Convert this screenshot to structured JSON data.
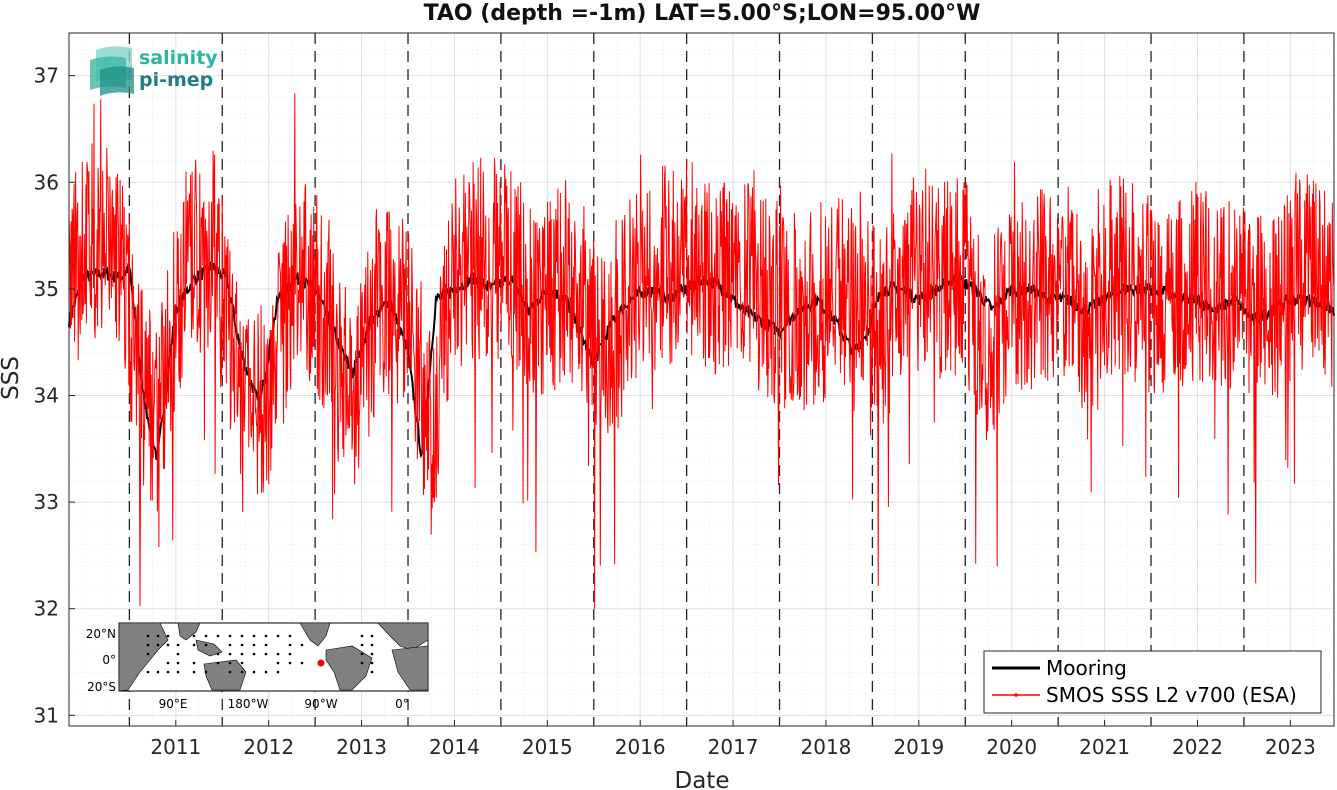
{
  "chart_data": {
    "type": "line",
    "title": "TAO (depth =-1m) LAT=5.00°S;LON=95.00°W",
    "xlabel": "Date",
    "ylabel": "SSS",
    "xlim": [
      2010.35,
      2023.97
    ],
    "ylim": [
      30.9,
      37.4
    ],
    "x_ticks": [
      "2011",
      "2012",
      "2013",
      "2014",
      "2015",
      "2016",
      "2017",
      "2018",
      "2019",
      "2020",
      "2021",
      "2022",
      "2023"
    ],
    "y_ticks": [
      "31",
      "32",
      "33",
      "34",
      "35",
      "36",
      "37"
    ],
    "year_boundaries": [
      2011,
      2012,
      2013,
      2014,
      2015,
      2016,
      2017,
      2018,
      2019,
      2020,
      2021,
      2022,
      2023
    ],
    "grid": true,
    "legend_position": "bottom-right",
    "series": [
      {
        "name": "Mooring",
        "color": "#000000",
        "x": [
          2010.35,
          2010.5,
          2010.7,
          2010.9,
          2011.0,
          2011.15,
          2011.3,
          2011.5,
          2011.7,
          2011.9,
          2012.05,
          2012.2,
          2012.4,
          2012.6,
          2012.8,
          2013.0,
          2013.2,
          2013.4,
          2013.6,
          2013.8,
          2014.0,
          2014.15,
          2014.3,
          2014.5,
          2014.7,
          2014.9,
          2015.1,
          2015.3,
          2015.5,
          2015.7,
          2015.9,
          2016.0,
          2016.2,
          2016.4,
          2016.6,
          2016.8,
          2017.0,
          2017.2,
          2017.4,
          2017.6,
          2017.8,
          2018.0,
          2018.2,
          2018.4,
          2018.6,
          2018.8,
          2018.95,
          2019.1,
          2019.3,
          2019.5,
          2019.7,
          2019.9,
          2020.1,
          2020.3,
          2020.5,
          2020.7,
          2020.9,
          2021.1,
          2021.3,
          2021.5,
          2021.7,
          2021.9,
          2022.1,
          2022.3,
          2022.5,
          2022.7,
          2022.9,
          2023.1,
          2023.3,
          2023.5,
          2023.7,
          2023.97
        ],
        "y": [
          34.7,
          35.1,
          35.15,
          35.1,
          35.2,
          34.0,
          33.4,
          34.8,
          35.1,
          35.2,
          35.1,
          34.4,
          33.9,
          34.9,
          35.1,
          35.0,
          34.6,
          34.2,
          34.7,
          34.9,
          34.4,
          33.4,
          34.9,
          35.0,
          35.1,
          35.0,
          35.1,
          34.8,
          35.0,
          34.9,
          34.5,
          34.3,
          34.7,
          34.9,
          35.0,
          34.9,
          35.0,
          35.1,
          35.0,
          34.8,
          34.7,
          34.6,
          34.8,
          34.9,
          34.7,
          34.4,
          34.6,
          35.0,
          35.0,
          34.9,
          35.0,
          35.1,
          35.0,
          34.8,
          35.0,
          35.0,
          34.9,
          34.9,
          34.8,
          34.9,
          35.0,
          35.0,
          35.0,
          34.9,
          34.9,
          34.8,
          34.9,
          34.7,
          34.8,
          34.9,
          34.9,
          34.8
        ]
      },
      {
        "name": "SMOS SSS L2 v700 (ESA)",
        "color": "#ff0000",
        "x": [
          2010.35,
          2010.5,
          2010.7,
          2010.9,
          2011.1,
          2011.3,
          2011.6,
          2011.9,
          2012.2,
          2012.45,
          2012.8,
          2013.0,
          2013.2,
          2013.45,
          2013.7,
          2014.0,
          2014.25,
          2014.5,
          2014.8,
          2015.1,
          2015.4,
          2015.7,
          2016.0,
          2016.15,
          2016.4,
          2016.7,
          2017.0,
          2017.3,
          2017.6,
          2017.9,
          2018.2,
          2018.5,
          2018.8,
          2019.1,
          2019.4,
          2019.7,
          2020.0,
          2020.2,
          2020.5,
          2020.8,
          2021.1,
          2021.3,
          2021.6,
          2021.9,
          2022.15,
          2022.4,
          2022.7,
          2023.0,
          2023.3,
          2023.6,
          2023.97
        ],
        "y": [
          34.9,
          35.4,
          35.5,
          35.3,
          34.2,
          33.8,
          35.2,
          35.4,
          34.0,
          33.9,
          35.2,
          35.0,
          34.4,
          34.0,
          35.0,
          34.8,
          33.6,
          35.2,
          35.3,
          35.2,
          34.8,
          35.1,
          34.7,
          34.3,
          35.0,
          35.2,
          35.3,
          35.1,
          35.1,
          34.9,
          34.7,
          34.9,
          35.1,
          34.6,
          35.2,
          35.1,
          35.1,
          34.4,
          35.0,
          35.0,
          35.1,
          34.5,
          35.2,
          35.0,
          34.8,
          35.1,
          35.0,
          34.9,
          34.8,
          35.2,
          34.9
        ]
      }
    ],
    "inset_map": {
      "lat_labels": [
        "20°N",
        "0°",
        "20°S"
      ],
      "lon_labels": [
        "90°E",
        "180°W",
        "90°W",
        "0°"
      ]
    }
  },
  "logo": {
    "line1": "salinity",
    "line2": "pi-mep",
    "color1": "#2bb5a3",
    "color2": "#1f7f86"
  }
}
